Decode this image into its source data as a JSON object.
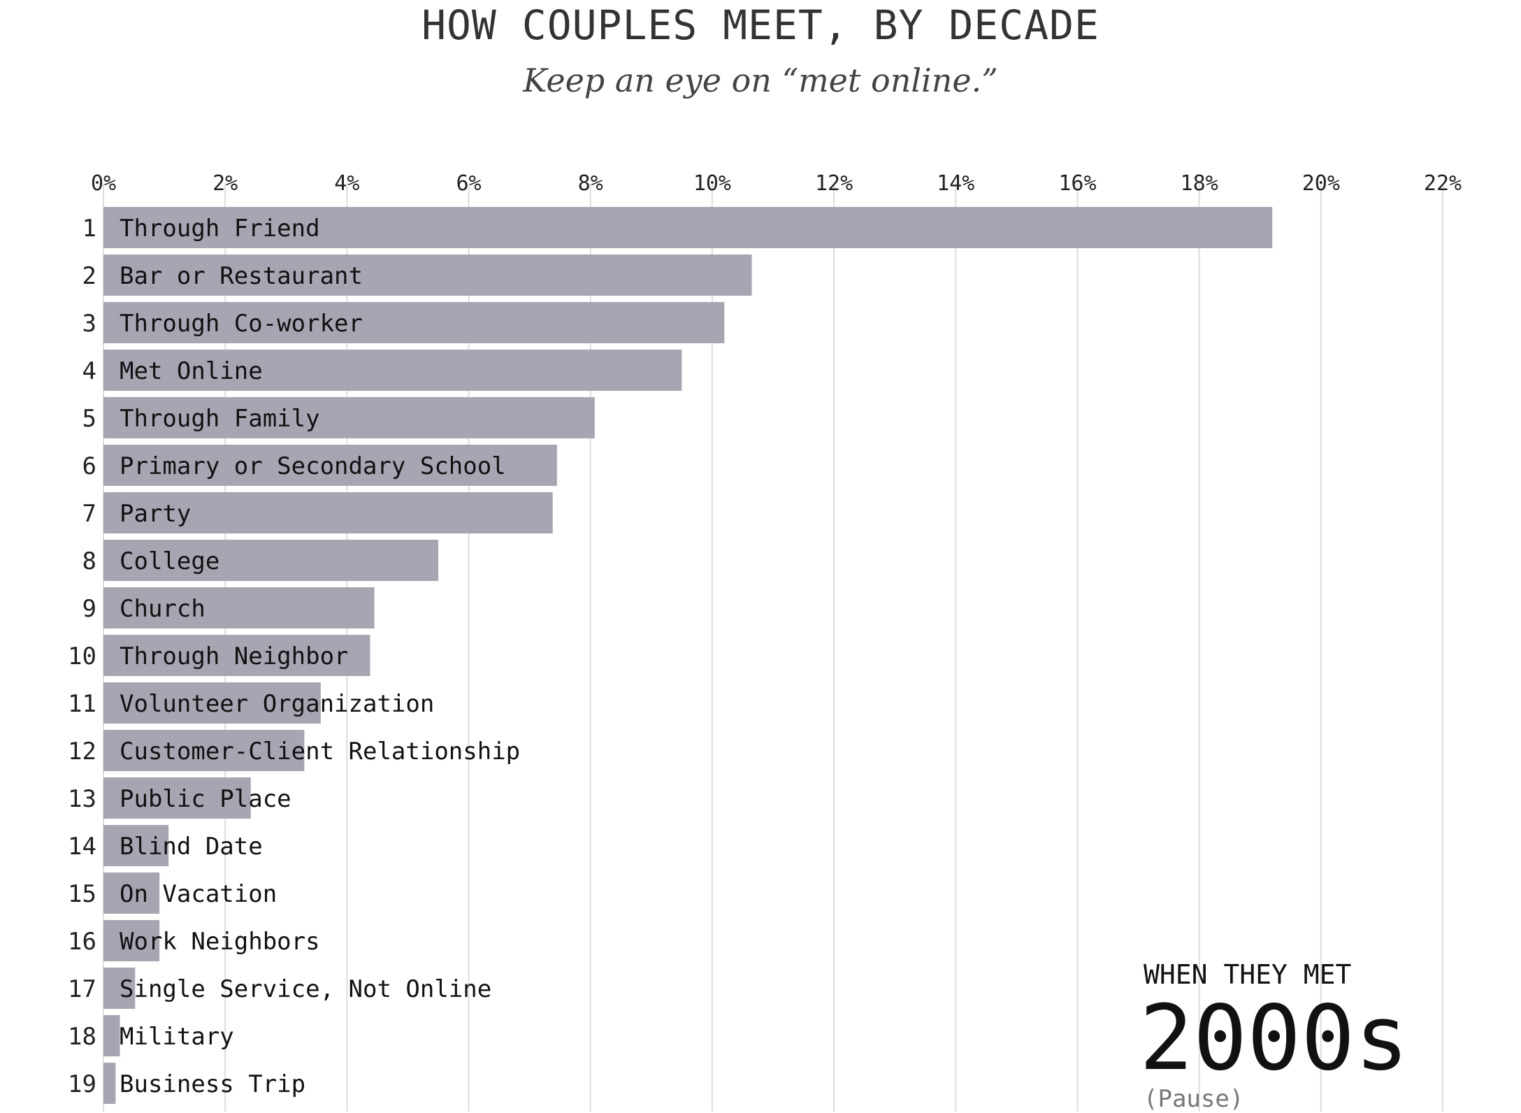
{
  "header": {
    "title": "HOW COUPLES MEET, BY DECADE",
    "subtitle": "Keep an eye on “met online.”"
  },
  "chart_data": {
    "type": "bar",
    "orientation": "horizontal",
    "title": "HOW COUPLES MEET, BY DECADE",
    "subtitle": "Keep an eye on “met online.”",
    "xlim": [
      0,
      22
    ],
    "ticks": [
      0,
      2,
      4,
      6,
      8,
      10,
      12,
      14,
      16,
      18,
      20,
      22
    ],
    "tick_labels": [
      "0%",
      "2%",
      "4%",
      "6%",
      "8%",
      "10%",
      "12%",
      "14%",
      "16%",
      "18%",
      "20%",
      "22%"
    ],
    "unit": "%",
    "grid": true,
    "color": "#a6a6b3",
    "ranks": [
      "1",
      "2",
      "3",
      "4",
      "5",
      "6",
      "7",
      "8",
      "9",
      "10",
      "11",
      "12",
      "13",
      "14",
      "15",
      "16",
      "17",
      "18",
      "19"
    ],
    "categories": [
      "Through Friend",
      "Bar or Restaurant",
      "Through Co-worker",
      "Met Online",
      "Through Family",
      "Primary or Secondary School",
      "Party",
      "College",
      "Church",
      "Through Neighbor",
      "Volunteer Organization",
      "Customer-Client Relationship",
      "Public Place",
      "Blind Date",
      "On Vacation",
      "Work Neighbors",
      "Single Service, Not Online",
      "Military",
      "Business Trip"
    ],
    "values": [
      19.2,
      10.65,
      10.2,
      9.5,
      8.07,
      7.45,
      7.38,
      5.5,
      4.45,
      4.38,
      3.57,
      3.3,
      2.42,
      1.07,
      0.92,
      0.92,
      0.52,
      0.27,
      0.2
    ]
  },
  "period": {
    "caption": "WHEN THEY MET",
    "value": "2000s",
    "control_label": "(Pause)"
  }
}
